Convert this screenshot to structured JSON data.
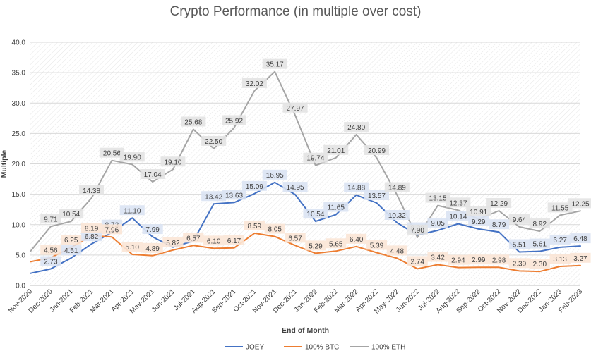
{
  "chart_data": {
    "type": "line",
    "title": "Crypto Performance (in multiple over cost)",
    "xlabel": "End of Month",
    "ylabel": "Multiple",
    "ylim": [
      0,
      40
    ],
    "yticks": [
      "0.0",
      "5.0",
      "10.0",
      "15.0",
      "20.0",
      "25.0",
      "30.0",
      "35.0",
      "40.0"
    ],
    "grid": true,
    "legend_position": "bottom",
    "categories": [
      "Nov-2020",
      "Dec-2020",
      "Jan-2021",
      "Feb-2021",
      "Mar-2021",
      "Apr-2021",
      "May-2021",
      "Jun-2021",
      "Jul-2021",
      "Aug-2021",
      "Sep-2021",
      "Oct-2021",
      "Nov-2021",
      "Dec-2021",
      "Jan-2022",
      "Feb-2022",
      "Mar-2022",
      "Apr-2022",
      "May-2022",
      "Jun-2022",
      "Jul-2022",
      "Aug-2022",
      "Sep-2022",
      "Oct-2022",
      "Nov-2022",
      "Dec-2022",
      "Jan-2023",
      "Feb-2023"
    ],
    "series": [
      {
        "name": "JOEY",
        "color": "#4472C4",
        "label_bg": "#DAE3F3",
        "values": [
          2.0,
          2.73,
          4.51,
          6.82,
          8.73,
          11.1,
          7.99,
          6.3,
          7.3,
          13.42,
          13.63,
          15.09,
          16.95,
          14.95,
          10.54,
          11.65,
          14.88,
          13.57,
          10.32,
          8.28,
          9.05,
          10.14,
          9.29,
          8.79,
          5.51,
          5.61,
          6.27,
          6.48
        ],
        "labels": [
          "",
          "2.73",
          "4.51",
          "6.82",
          "8.73",
          "11.10",
          "7.99",
          "",
          "",
          "13.42",
          "13.63",
          "15.09",
          "16.95",
          "14.95",
          "10.54",
          "11.65",
          "14.88",
          "13.57",
          "10.32",
          "8.28",
          "9.05",
          "10.14",
          "9.29",
          "8.79",
          "5.51",
          "5.61",
          "6.27",
          "6.48"
        ]
      },
      {
        "name": "100% BTC",
        "color": "#ED7D31",
        "label_bg": "#FBE5D6",
        "values": [
          3.9,
          4.56,
          6.25,
          8.19,
          7.96,
          5.1,
          4.89,
          5.82,
          6.57,
          6.1,
          6.17,
          8.59,
          8.05,
          6.57,
          5.29,
          5.65,
          6.4,
          5.39,
          4.48,
          2.74,
          3.42,
          2.94,
          2.99,
          2.98,
          2.39,
          2.3,
          3.13,
          3.27
        ],
        "labels": [
          "",
          "4.56",
          "6.25",
          "8.19",
          "7.96",
          "5.10",
          "4.89",
          "5.82",
          "6.57",
          "6.10",
          "6.17",
          "8.59",
          "8.05",
          "6.57",
          "5.29",
          "5.65",
          "6.40",
          "5.39",
          "4.48",
          "2.74",
          "3.42",
          "2.94",
          "2.99",
          "2.98",
          "2.39",
          "2.30",
          "3.13",
          "3.27"
        ]
      },
      {
        "name": "100% ETH",
        "color": "#A5A5A5",
        "label_bg": "#E3E3E3",
        "values": [
          5.6,
          9.71,
          10.54,
          14.38,
          20.56,
          19.9,
          17.04,
          19.1,
          25.68,
          22.5,
          25.92,
          32.02,
          35.17,
          27.97,
          19.74,
          21.01,
          24.8,
          20.99,
          14.89,
          7.9,
          13.15,
          12.37,
          10.91,
          12.29,
          9.64,
          8.92,
          11.55,
          12.25
        ],
        "labels": [
          "",
          "9.71",
          "10.54",
          "14.38",
          "20.56",
          "19.90",
          "17.04",
          "19.10",
          "25.68",
          "22.50",
          "25.92",
          "32.02",
          "35.17",
          "27.97",
          "19.74",
          "21.01",
          "24.80",
          "20.99",
          "14.89",
          "7.90",
          "13.15",
          "12.37",
          "10.91",
          "12.29",
          "9.64",
          "8.92",
          "11.55",
          "12.25"
        ]
      }
    ]
  }
}
